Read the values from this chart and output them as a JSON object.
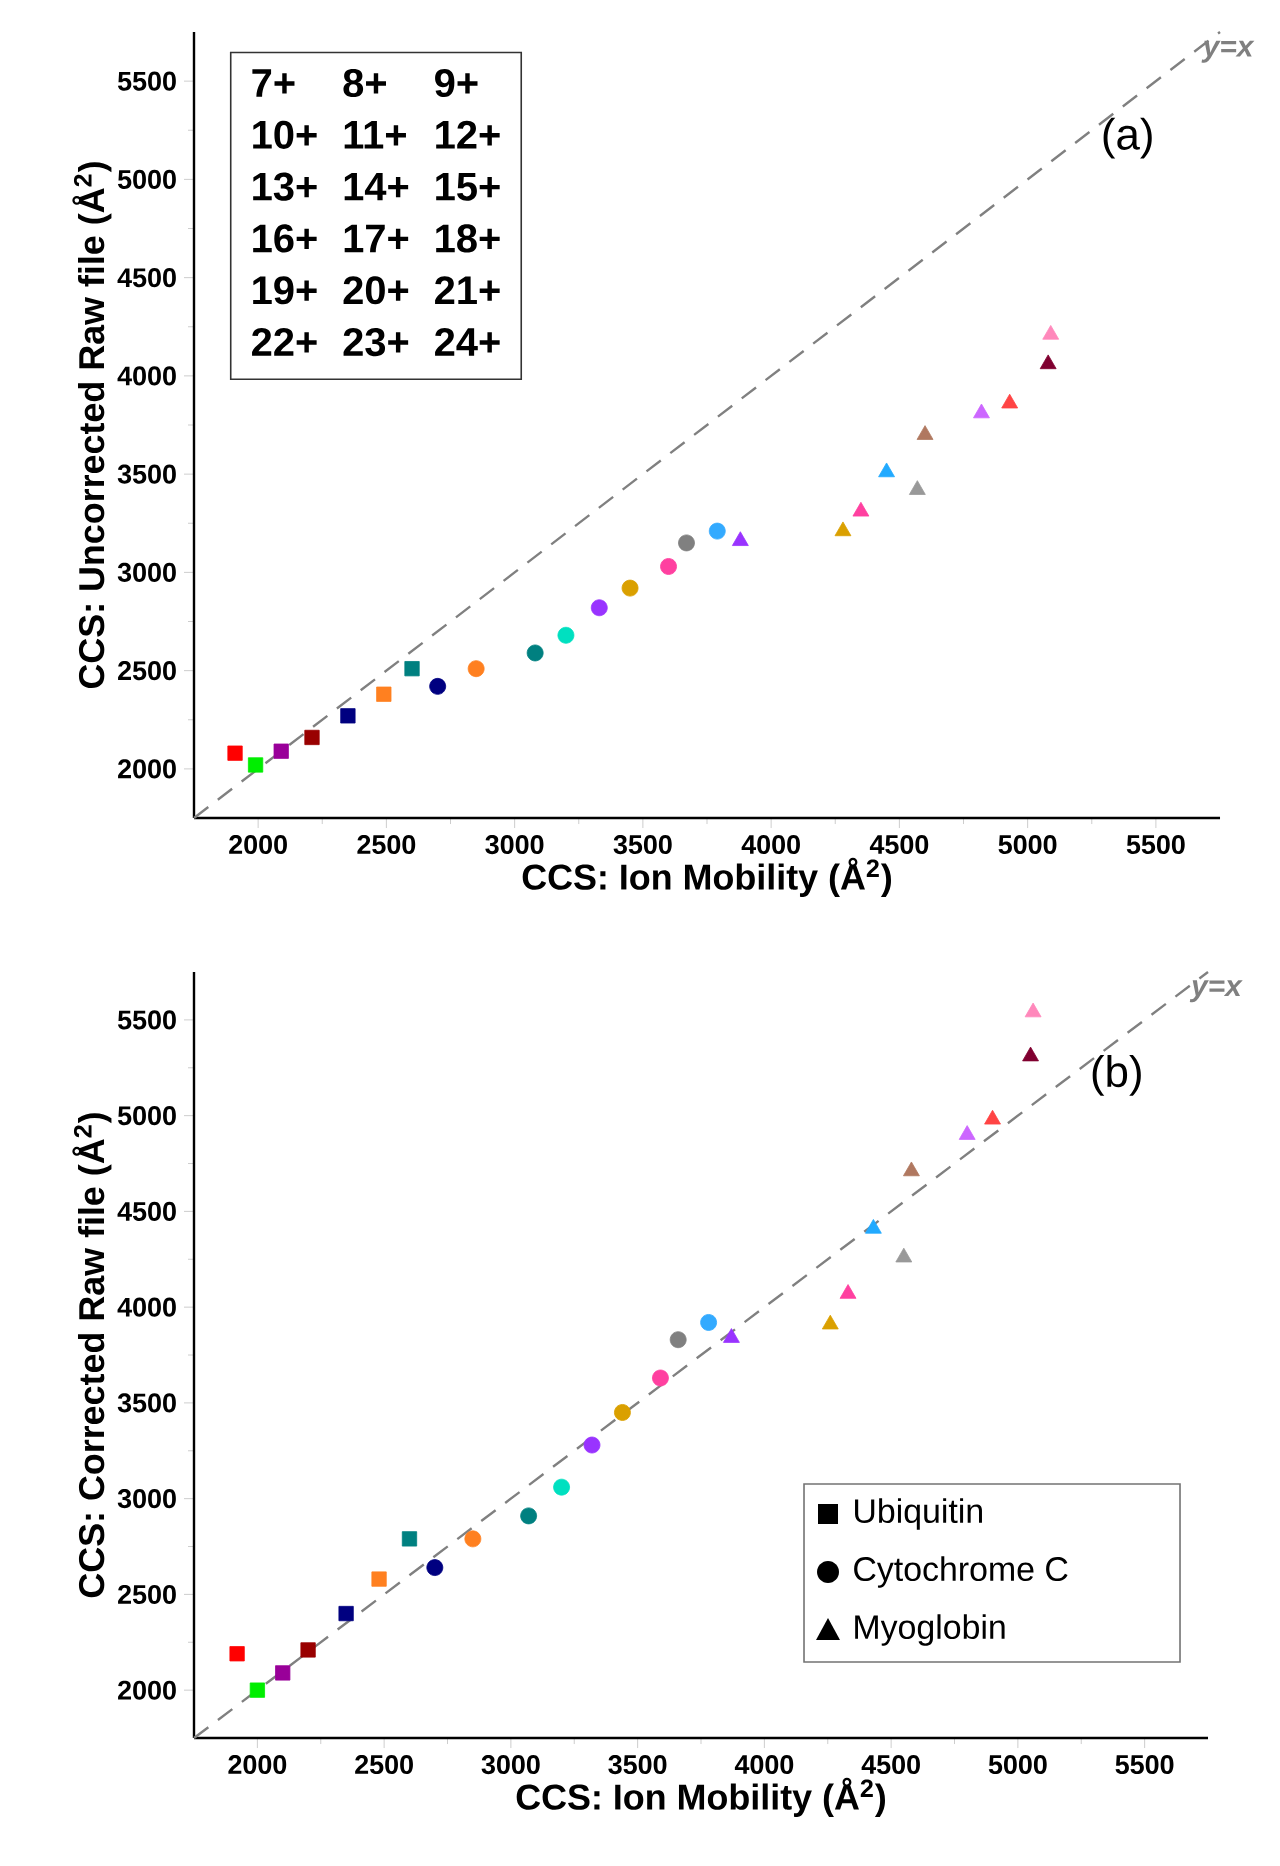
{
  "chart_data": [
    {
      "type": "scatter",
      "xlabel": "CCS: Ion Mobility (Å$^{2}$)",
      "ylabel": "CCS: Uncorrected Raw file (Å$^{2}$)",
      "xlim": [
        1750,
        5750
      ],
      "ylim": [
        1750,
        5750
      ],
      "xticks": [
        2000,
        2500,
        3000,
        3500,
        4000,
        4500,
        5000,
        5500
      ],
      "yticks": [
        2000,
        2500,
        3000,
        3500,
        4000,
        4500,
        5000,
        5500
      ],
      "grid": false,
      "annotations": [
        {
          "text": "y=x",
          "x": 5650,
          "y": 5650
        },
        "7+",
        "8+",
        "9+",
        "10+",
        "11+",
        "12+",
        "13+",
        "14+",
        "15+",
        "16+",
        "17+",
        "18+",
        "19+",
        "20+",
        "21+",
        "22+",
        "23+",
        "24+",
        "(a)"
      ],
      "series": [
        {
          "marker": "square",
          "color": "#000000",
          "x": [
            1910,
            1990,
            2090,
            2210,
            2350,
            2490,
            2600
          ],
          "values": [
            2080,
            2020,
            2090,
            2160,
            2270,
            2380,
            2510
          ],
          "colors": [
            "#ff0000",
            "#00ee00",
            "#990099",
            "#990000",
            "#000080",
            "#ff8020",
            "#008080"
          ]
        },
        {
          "marker": "circle",
          "color": "#000000",
          "x": [
            2700,
            2850,
            3080,
            3200,
            3330,
            3450,
            3600,
            3670,
            3790
          ],
          "values": [
            2420,
            2510,
            2590,
            2680,
            2820,
            2920,
            3030,
            3150,
            3210
          ],
          "colors": [
            "#000080",
            "#ff8020",
            "#008080",
            "#00e0c0",
            "#9933ff",
            "#daa000",
            "#ff40a0",
            "#808080",
            "#33aaff"
          ]
        },
        {
          "marker": "triangle",
          "color": "#000000",
          "x": [
            3880,
            4280,
            4350,
            4450,
            4570,
            4600,
            4820,
            4930,
            5080,
            5090
          ],
          "values": [
            3160,
            3210,
            3310,
            3510,
            3420,
            3700,
            3810,
            3860,
            4060,
            4210
          ],
          "colors": [
            "#9933ff",
            "#daa000",
            "#ff40a0",
            "#22aaff",
            "#999999",
            "#b07860",
            "#cc66ff",
            "#ff4444",
            "#800030",
            "#ff88bb"
          ]
        },
        {
          "type": "line",
          "color": "#808080",
          "line_style": "dashed",
          "marker": "none",
          "x": [
            1750,
            5750
          ],
          "values": [
            1750,
            5750
          ]
        }
      ]
    },
    {
      "type": "scatter",
      "xlabel": "CCS: Ion Mobility (Å$^{2}$)",
      "ylabel": "CCS: Corrected Raw file (Å$^{2}$)",
      "xlim": [
        1750,
        5750
      ],
      "ylim": [
        1750,
        5750
      ],
      "xticks": [
        2000,
        2500,
        3000,
        3500,
        4000,
        4500,
        5000,
        5500
      ],
      "yticks": [
        2000,
        2500,
        3000,
        3500,
        4000,
        4500,
        5000,
        5500
      ],
      "grid": false,
      "annotations": [
        {
          "text": "y=x",
          "x": 5650,
          "y": 5650
        },
        "Ubiquitin",
        "Cytochrome C",
        "Myoglobin",
        "(b)"
      ],
      "series": [
        {
          "marker": "square",
          "color": "#000000",
          "x": [
            1920,
            2000,
            2100,
            2200,
            2350,
            2480,
            2600
          ],
          "values": [
            2190,
            2000,
            2090,
            2210,
            2400,
            2580,
            2790
          ],
          "colors": [
            "#ff0000",
            "#00ee00",
            "#990099",
            "#990000",
            "#000080",
            "#ff8020",
            "#008080"
          ]
        },
        {
          "marker": "circle",
          "color": "#000000",
          "x": [
            2700,
            2850,
            3070,
            3200,
            3320,
            3440,
            3590,
            3660,
            3780
          ],
          "values": [
            2640,
            2790,
            2910,
            3060,
            3280,
            3450,
            3630,
            3830,
            3920
          ],
          "colors": [
            "#000080",
            "#ff8020",
            "#008080",
            "#00e0c0",
            "#9933ff",
            "#daa000",
            "#ff40a0",
            "#808080",
            "#33aaff"
          ]
        },
        {
          "marker": "triangle",
          "color": "#000000",
          "x": [
            3870,
            4260,
            4330,
            4430,
            4550,
            4580,
            4800,
            4900,
            5050,
            5060
          ],
          "values": [
            3840,
            3910,
            4070,
            4410,
            4260,
            4710,
            4900,
            4980,
            5310,
            5540
          ],
          "colors": [
            "#9933ff",
            "#daa000",
            "#ff40a0",
            "#22aaff",
            "#999999",
            "#b07860",
            "#cc66ff",
            "#ff4444",
            "#800030",
            "#ff88bb"
          ]
        },
        {
          "type": "line",
          "color": "#808080",
          "line_style": "dashed",
          "marker": "none",
          "x": [
            1750,
            5750
          ],
          "values": [
            1750,
            5750
          ]
        }
      ]
    }
  ]
}
